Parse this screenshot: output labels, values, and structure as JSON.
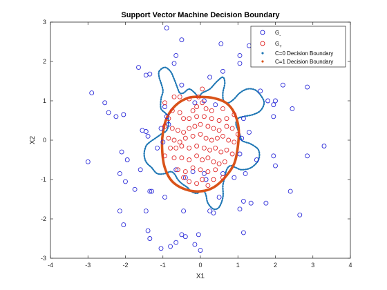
{
  "chart_data": {
    "type": "scatter",
    "title": "Support Vector Machine Decision Boundary",
    "xlabel": "X1",
    "ylabel": "X2",
    "xlim": [
      -4,
      4
    ],
    "ylim": [
      -3,
      3
    ],
    "xticks": [
      "-4",
      "-3",
      "-2",
      "-1",
      "0",
      "1",
      "2",
      "3",
      "4"
    ],
    "yticks": [
      "-3",
      "-2",
      "-1",
      "0",
      "1",
      "2",
      "3"
    ],
    "grid": false,
    "legend_position": "top-right",
    "colors": {
      "neg": "#2a2ad8",
      "pos": "#e02a2a",
      "c0": "#1f77b4",
      "c1": "#d95319"
    },
    "legend": [
      {
        "label": "G",
        "sub": "-",
        "marker": "circle",
        "color": "#2a2ad8"
      },
      {
        "label": "G",
        "sub": "+",
        "marker": "circle",
        "color": "#e02a2a"
      },
      {
        "label": "C=0 Decision Boundary",
        "marker": "dot",
        "color": "#1f77b4"
      },
      {
        "label": "C=1 Decision Boundary",
        "marker": "dot",
        "color": "#d95319"
      }
    ],
    "series": [
      {
        "name": "G-",
        "points": [
          [
            -0.9,
            2.85
          ],
          [
            -0.5,
            2.55
          ],
          [
            -0.65,
            2.15
          ],
          [
            0.55,
            2.45
          ],
          [
            1.05,
            2.15
          ],
          [
            1.3,
            2.4
          ],
          [
            1.45,
            2.5
          ],
          [
            1.05,
            1.95
          ],
          [
            -1.65,
            1.85
          ],
          [
            -1.45,
            1.65
          ],
          [
            -1.35,
            1.68
          ],
          [
            -0.7,
            1.95
          ],
          [
            0.6,
            1.75
          ],
          [
            0.25,
            1.6
          ],
          [
            2.2,
            1.4
          ],
          [
            2.85,
            1.35
          ],
          [
            -2.9,
            1.2
          ],
          [
            -2.55,
            0.95
          ],
          [
            -2.45,
            0.7
          ],
          [
            -2.25,
            0.6
          ],
          [
            -2.05,
            0.65
          ],
          [
            -1.55,
            0.25
          ],
          [
            -1.45,
            0.22
          ],
          [
            -1.4,
            0.1
          ],
          [
            -0.95,
            0.85
          ],
          [
            -0.9,
            0.6
          ],
          [
            -0.85,
            0.4
          ],
          [
            -1.05,
            0.3
          ],
          [
            -1.0,
            -0.05
          ],
          [
            -1.15,
            -0.2
          ],
          [
            0.4,
            0.9
          ],
          [
            0.1,
            1.0
          ],
          [
            -0.5,
            1.4
          ],
          [
            -0.15,
            0.95
          ],
          [
            1.6,
            1.25
          ],
          [
            1.8,
            1.0
          ],
          [
            1.95,
            0.9
          ],
          [
            1.95,
            0.6
          ],
          [
            2.0,
            1.0
          ],
          [
            2.45,
            0.8
          ],
          [
            1.15,
            0.55
          ],
          [
            1.1,
            0.05
          ],
          [
            1.3,
            0.2
          ],
          [
            1.05,
            -0.35
          ],
          [
            1.5,
            -0.5
          ],
          [
            1.95,
            -0.4
          ],
          [
            2.0,
            -0.65
          ],
          [
            2.85,
            -0.4
          ],
          [
            3.3,
            -0.15
          ],
          [
            -3.0,
            -0.55
          ],
          [
            -2.1,
            -0.3
          ],
          [
            -2.15,
            -0.85
          ],
          [
            -1.95,
            -0.5
          ],
          [
            -1.6,
            -0.75
          ],
          [
            -1.75,
            -1.25
          ],
          [
            -2.0,
            -1.05
          ],
          [
            -1.35,
            -1.3
          ],
          [
            -0.65,
            -0.75
          ],
          [
            -0.4,
            -0.95
          ],
          [
            -0.2,
            -0.8
          ],
          [
            0.1,
            -0.85
          ],
          [
            0.6,
            -0.85
          ],
          [
            0.5,
            -1.45
          ],
          [
            0.9,
            -0.95
          ],
          [
            1.2,
            -0.85
          ],
          [
            1.15,
            -1.55
          ],
          [
            1.35,
            -1.6
          ],
          [
            1.75,
            -1.6
          ],
          [
            2.4,
            -1.3
          ],
          [
            2.65,
            -1.9
          ],
          [
            -2.15,
            -1.8
          ],
          [
            -2.05,
            -2.15
          ],
          [
            -1.45,
            -1.8
          ],
          [
            -1.4,
            -2.3
          ],
          [
            -1.35,
            -2.5
          ],
          [
            -1.3,
            -1.3
          ],
          [
            -0.95,
            -1.45
          ],
          [
            -0.45,
            -1.8
          ],
          [
            0.35,
            -1.85
          ],
          [
            0.25,
            -1.8
          ],
          [
            1.15,
            -2.35
          ],
          [
            1.05,
            -1.75
          ],
          [
            -1.05,
            -2.75
          ],
          [
            -0.8,
            -2.7
          ],
          [
            -0.65,
            -2.6
          ],
          [
            -0.5,
            -2.4
          ],
          [
            -0.4,
            -2.45
          ],
          [
            -0.05,
            -2.4
          ],
          [
            -0.15,
            -2.65
          ],
          [
            0.0,
            -2.8
          ],
          [
            0.15,
            -1.0
          ]
        ]
      },
      {
        "name": "G+",
        "points": [
          [
            -0.95,
            0.95
          ],
          [
            -0.7,
            1.1
          ],
          [
            -0.55,
            1.1
          ],
          [
            -0.3,
            1.05
          ],
          [
            -0.05,
            1.1
          ],
          [
            0.05,
            0.95
          ],
          [
            0.15,
            0.8
          ],
          [
            0.3,
            0.75
          ],
          [
            -0.75,
            0.75
          ],
          [
            -0.55,
            0.7
          ],
          [
            -0.45,
            0.55
          ],
          [
            -0.3,
            0.55
          ],
          [
            -0.1,
            0.6
          ],
          [
            0.1,
            0.6
          ],
          [
            0.3,
            0.55
          ],
          [
            0.5,
            0.5
          ],
          [
            0.7,
            0.55
          ],
          [
            0.9,
            0.65
          ],
          [
            -0.95,
            0.35
          ],
          [
            -0.75,
            0.3
          ],
          [
            -0.6,
            0.25
          ],
          [
            -0.45,
            0.2
          ],
          [
            -0.3,
            0.3
          ],
          [
            -0.15,
            0.35
          ],
          [
            0.0,
            0.4
          ],
          [
            0.2,
            0.35
          ],
          [
            0.35,
            0.3
          ],
          [
            0.5,
            0.25
          ],
          [
            0.7,
            0.35
          ],
          [
            0.85,
            0.3
          ],
          [
            -0.85,
            0.05
          ],
          [
            -0.7,
            0.0
          ],
          [
            -0.55,
            -0.05
          ],
          [
            -0.4,
            0.05
          ],
          [
            -0.2,
            0.1
          ],
          [
            0.0,
            0.15
          ],
          [
            0.15,
            0.05
          ],
          [
            0.3,
            0.0
          ],
          [
            0.45,
            0.05
          ],
          [
            0.6,
            0.1
          ],
          [
            0.75,
            0.0
          ],
          [
            0.9,
            -0.05
          ],
          [
            -0.8,
            -0.2
          ],
          [
            -0.65,
            -0.2
          ],
          [
            -0.5,
            -0.15
          ],
          [
            -0.3,
            -0.2
          ],
          [
            -0.1,
            -0.15
          ],
          [
            0.1,
            -0.2
          ],
          [
            0.25,
            -0.25
          ],
          [
            0.4,
            -0.2
          ],
          [
            0.55,
            -0.3
          ],
          [
            0.7,
            -0.25
          ],
          [
            0.85,
            -0.35
          ],
          [
            -0.7,
            -0.45
          ],
          [
            -0.5,
            -0.45
          ],
          [
            -0.3,
            -0.5
          ],
          [
            -0.1,
            -0.4
          ],
          [
            0.05,
            -0.5
          ],
          [
            0.2,
            -0.45
          ],
          [
            0.35,
            -0.55
          ],
          [
            0.5,
            -0.6
          ],
          [
            0.65,
            -0.55
          ],
          [
            -0.6,
            -0.75
          ],
          [
            -0.4,
            -0.8
          ],
          [
            -0.2,
            -0.7
          ],
          [
            0.0,
            -0.75
          ],
          [
            0.2,
            -0.8
          ],
          [
            0.4,
            -0.75
          ],
          [
            -0.3,
            -1.05
          ],
          [
            -0.1,
            -1.1
          ],
          [
            0.05,
            -1.0
          ],
          [
            0.2,
            -1.15
          ],
          [
            0.35,
            -1.0
          ],
          [
            -0.45,
            -0.95
          ],
          [
            0.05,
            1.3
          ],
          [
            -0.1,
            0.85
          ],
          [
            0.6,
            0.8
          ],
          [
            -0.85,
            0.55
          ],
          [
            1.0,
            0.15
          ],
          [
            -0.95,
            -0.4
          ],
          [
            0.6,
            -0.95
          ],
          [
            -0.2,
            0.75
          ]
        ]
      },
      {
        "name": "C=0 Decision Boundary",
        "points": [
          [
            -1.1,
            1.75
          ],
          [
            -0.95,
            1.85
          ],
          [
            -0.8,
            1.75
          ],
          [
            -0.7,
            1.55
          ],
          [
            -0.62,
            1.35
          ],
          [
            -0.55,
            1.2
          ],
          [
            -0.45,
            1.2
          ],
          [
            -0.3,
            1.3
          ],
          [
            -0.15,
            1.2
          ],
          [
            -0.05,
            1.1
          ],
          [
            0.05,
            1.2
          ],
          [
            0.25,
            1.3
          ],
          [
            0.45,
            1.5
          ],
          [
            0.6,
            1.6
          ],
          [
            0.65,
            1.45
          ],
          [
            0.6,
            1.2
          ],
          [
            0.62,
            1.0
          ],
          [
            0.75,
            0.95
          ],
          [
            0.9,
            1.05
          ],
          [
            1.05,
            1.2
          ],
          [
            1.25,
            1.3
          ],
          [
            1.45,
            1.28
          ],
          [
            1.6,
            1.15
          ],
          [
            1.7,
            0.95
          ],
          [
            1.6,
            0.75
          ],
          [
            1.4,
            0.65
          ],
          [
            1.15,
            0.6
          ],
          [
            1.0,
            0.55
          ],
          [
            0.95,
            0.4
          ],
          [
            1.05,
            0.15
          ],
          [
            1.1,
            0.0
          ],
          [
            1.2,
            -0.05
          ],
          [
            1.35,
            -0.1
          ],
          [
            1.55,
            -0.25
          ],
          [
            1.55,
            -0.5
          ],
          [
            1.35,
            -0.7
          ],
          [
            1.1,
            -0.75
          ],
          [
            0.95,
            -0.7
          ],
          [
            0.8,
            -0.65
          ],
          [
            0.7,
            -0.75
          ],
          [
            0.65,
            -0.95
          ],
          [
            0.6,
            -1.15
          ],
          [
            0.6,
            -1.45
          ],
          [
            0.5,
            -1.7
          ],
          [
            0.35,
            -1.75
          ],
          [
            0.2,
            -1.6
          ],
          [
            0.15,
            -1.4
          ],
          [
            0.1,
            -1.3
          ],
          [
            0.0,
            -1.3
          ],
          [
            -0.1,
            -1.35
          ],
          [
            -0.25,
            -1.3
          ],
          [
            -0.35,
            -1.2
          ],
          [
            -0.5,
            -1.1
          ],
          [
            -0.6,
            -1.0
          ],
          [
            -0.7,
            -0.85
          ],
          [
            -0.8,
            -0.8
          ],
          [
            -0.95,
            -0.85
          ],
          [
            -1.15,
            -0.85
          ],
          [
            -1.3,
            -0.7
          ],
          [
            -1.45,
            -0.55
          ],
          [
            -1.5,
            -0.35
          ],
          [
            -1.45,
            -0.15
          ],
          [
            -1.35,
            -0.05
          ],
          [
            -1.2,
            0.05
          ],
          [
            -1.05,
            0.15
          ],
          [
            -0.9,
            0.25
          ],
          [
            -0.85,
            0.45
          ],
          [
            -0.9,
            0.65
          ],
          [
            -1.05,
            0.8
          ],
          [
            -1.05,
            1.05
          ],
          [
            -1.0,
            1.25
          ],
          [
            -1.05,
            1.45
          ],
          [
            -1.1,
            1.6
          ],
          [
            -1.1,
            1.75
          ]
        ]
      },
      {
        "name": "C=1 Decision Boundary",
        "points": [
          [
            0.0,
            1.1
          ],
          [
            0.35,
            1.07
          ],
          [
            0.68,
            0.95
          ],
          [
            0.9,
            0.7
          ],
          [
            1.02,
            0.3
          ],
          [
            1.0,
            -0.15
          ],
          [
            0.9,
            -0.6
          ],
          [
            0.65,
            -0.95
          ],
          [
            0.35,
            -1.2
          ],
          [
            0.0,
            -1.3
          ],
          [
            -0.4,
            -1.25
          ],
          [
            -0.75,
            -1.05
          ],
          [
            -0.95,
            -0.7
          ],
          [
            -1.02,
            -0.25
          ],
          [
            -1.0,
            0.2
          ],
          [
            -0.88,
            0.6
          ],
          [
            -0.62,
            0.92
          ],
          [
            -0.3,
            1.08
          ],
          [
            0.0,
            1.1
          ]
        ]
      }
    ]
  }
}
